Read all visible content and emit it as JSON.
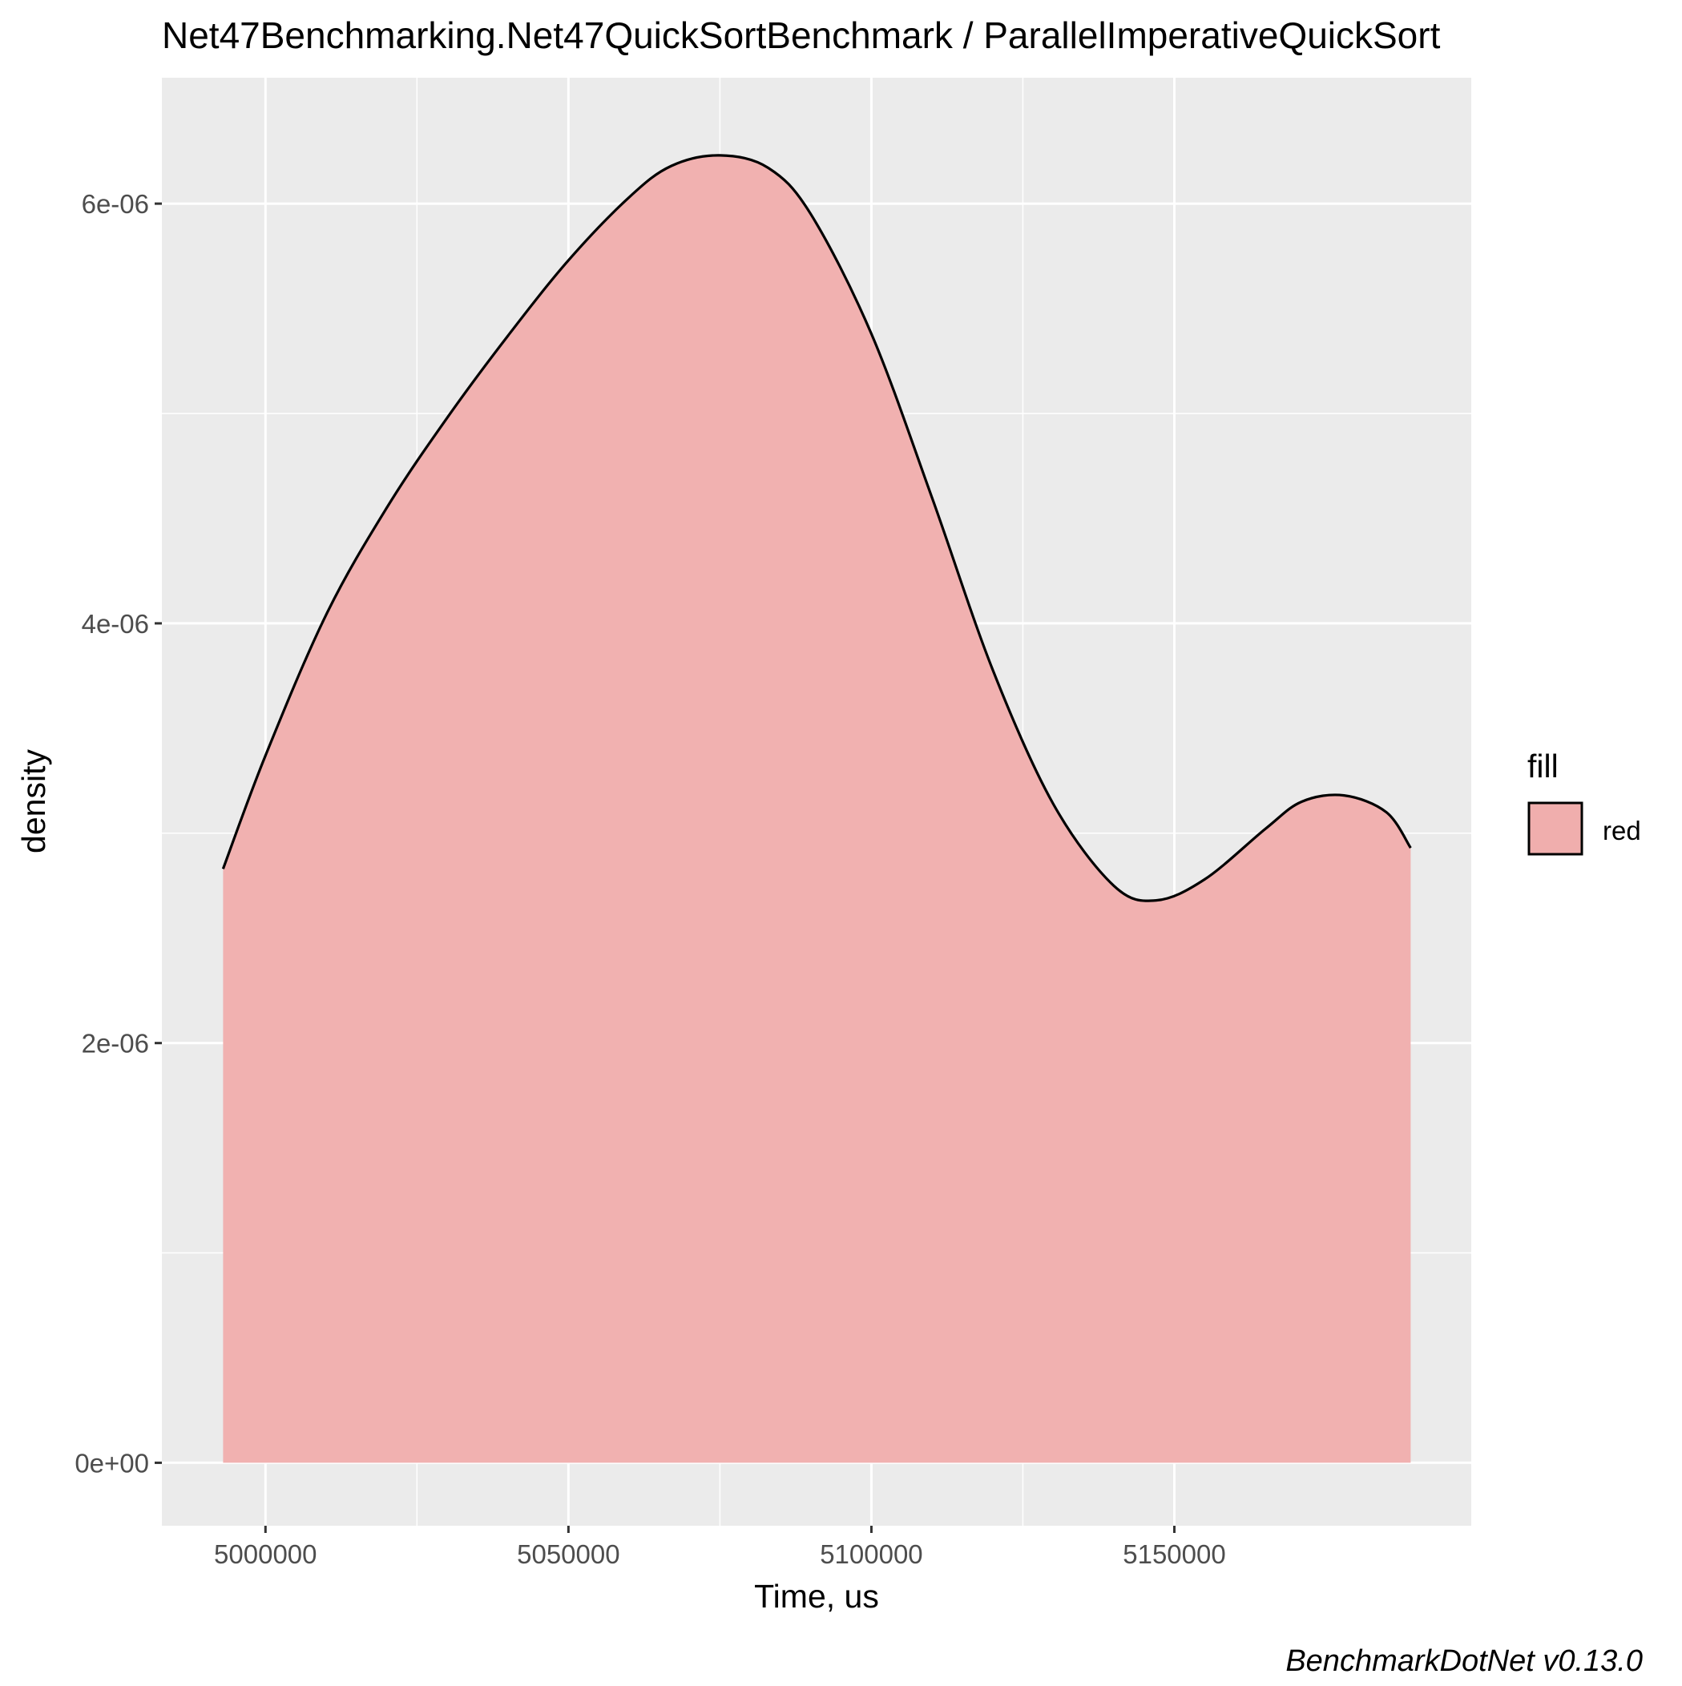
{
  "chart_data": {
    "type": "area",
    "title": "Net47Benchmarking.Net47QuickSortBenchmark / ParallelImperativeQuickSort",
    "xlabel": "Time, us",
    "ylabel": "density",
    "caption": "BenchmarkDotNet v0.13.0",
    "x_ticks": [
      5000000,
      5050000,
      5100000,
      5150000
    ],
    "x_tick_labels": [
      "5000000",
      "5050000",
      "5100000",
      "5150000"
    ],
    "y_ticks": [
      0,
      2e-06,
      4e-06,
      6e-06
    ],
    "y_tick_labels": [
      "0e+00",
      "2e-06",
      "4e-06",
      "6e-06"
    ],
    "xlim": [
      4982900,
      5199000
    ],
    "ylim": [
      -3e-07,
      6.6e-06
    ],
    "grid": true,
    "legend": {
      "title": "fill",
      "position": "right",
      "entries": [
        {
          "label": "red",
          "color": "#F0AEAD"
        }
      ]
    },
    "colors": {
      "fill": "#F0AEAD",
      "outline": "#000000",
      "panel": "#EBEBEB",
      "grid": "#FFFFFF"
    },
    "series": [
      {
        "x": [
          4993000,
          5000000,
          5010000,
          5020000,
          5030000,
          5040000,
          5050000,
          5060000,
          5067000,
          5075000,
          5083000,
          5090000,
          5100000,
          5110000,
          5120000,
          5130000,
          5140000,
          5147000,
          5155000,
          5165000,
          5171000,
          5178000,
          5185000,
          5189000
        ],
        "y": [
          2.83e-06,
          3.37e-06,
          4.04e-06,
          4.55e-06,
          4.98e-06,
          5.37e-06,
          5.73e-06,
          6.03e-06,
          6.18e-06,
          6.23e-06,
          6.17e-06,
          5.95e-06,
          5.38e-06,
          4.6e-06,
          3.78e-06,
          3.14e-06,
          2.75e-06,
          2.68e-06,
          2.78e-06,
          3.02e-06,
          3.15e-06,
          3.18e-06,
          3.1e-06,
          2.93e-06
        ]
      }
    ]
  }
}
